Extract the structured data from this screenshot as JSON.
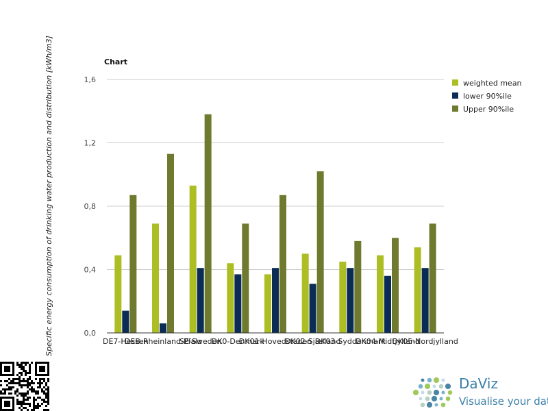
{
  "chart_data": {
    "type": "bar",
    "title": "Chart",
    "ylabel": "Specific energy consumption of drinking water production and distribution [kWh/m3]",
    "xlabel": "",
    "ylim": [
      0,
      1.6
    ],
    "yticks": [
      "0,0",
      "0,4",
      "0,8",
      "1,2",
      "1,6"
    ],
    "ytick_values": [
      0,
      0.4,
      0.8,
      1.2,
      1.6
    ],
    "grid": "horizontal",
    "legend_position": "right",
    "categories": [
      "DE7-Hessen",
      "DEB-Rheinland-Pfalz",
      "SE-Sweden",
      "DK0-Denmark",
      "DK01-Hovedstaden",
      "DK02-Sjælland",
      "DK03-Syddanmark",
      "DK04-Midtjylland",
      "DK05-Nordjylland"
    ],
    "series": [
      {
        "name": "weighted mean",
        "color": "#adbd24",
        "values": [
          0.49,
          0.69,
          0.93,
          0.44,
          0.37,
          0.5,
          0.45,
          0.49,
          0.54
        ]
      },
      {
        "name": "lower 90%ile",
        "color": "#0b2d55",
        "values": [
          0.14,
          0.06,
          0.41,
          0.37,
          0.41,
          0.31,
          0.41,
          0.36,
          0.41
        ]
      },
      {
        "name": "Upper 90%ile",
        "color": "#6f7a2e",
        "values": [
          0.87,
          1.13,
          1.38,
          0.69,
          0.87,
          1.02,
          0.58,
          0.6,
          0.69
        ]
      }
    ]
  },
  "branding": {
    "name": "DaViz",
    "tagline": "Visualise your data",
    "logo_icon": "dot-globe-logo",
    "qr_icon": "qr-code"
  }
}
